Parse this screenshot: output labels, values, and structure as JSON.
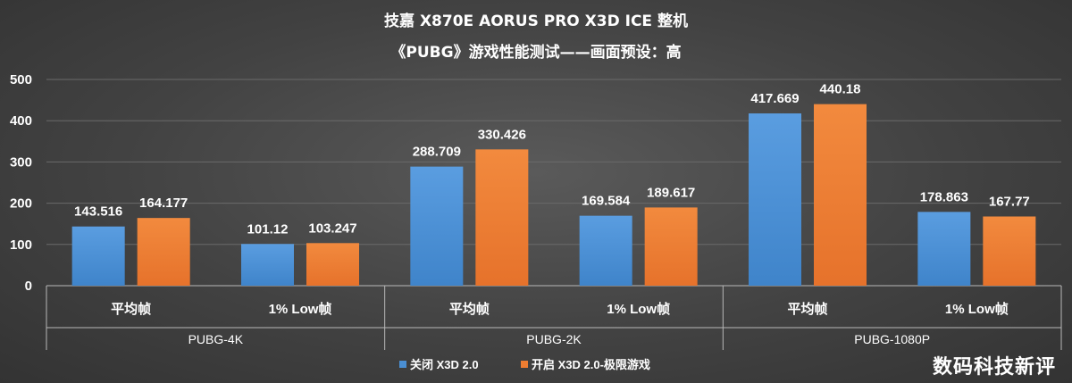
{
  "watermark": "数码科技新评",
  "chart_data": {
    "type": "bar",
    "title": "技嘉 X870E AORUS PRO X3D ICE 整机",
    "subtitle": "《PUBG》游戏性能测试——画面预设：高",
    "ylim": [
      0,
      500
    ],
    "yticks": [
      0,
      100,
      200,
      300,
      400,
      500
    ],
    "groups": [
      "PUBG-4K",
      "PUBG-2K",
      "PUBG-1080P"
    ],
    "categories": [
      "平均帧",
      "1% Low帧",
      "平均帧",
      "1% Low帧",
      "平均帧",
      "1% Low帧"
    ],
    "series": [
      {
        "name": "关闭 X3D 2.0",
        "color": "#4a8fd4",
        "values": [
          143.516,
          101.12,
          288.709,
          169.584,
          417.669,
          178.863
        ],
        "labels": [
          "143.516",
          "101.12",
          "288.709",
          "169.584",
          "417.669",
          "178.863"
        ]
      },
      {
        "name": "开启 X3D 2.0-极限游戏",
        "color": "#ee7d31",
        "values": [
          164.177,
          103.247,
          330.426,
          189.617,
          440.18,
          167.77
        ],
        "labels": [
          "164.177",
          "103.247",
          "330.426",
          "189.617",
          "440.18",
          "167.77"
        ]
      }
    ],
    "grid": true,
    "legend": "bottom-center"
  }
}
